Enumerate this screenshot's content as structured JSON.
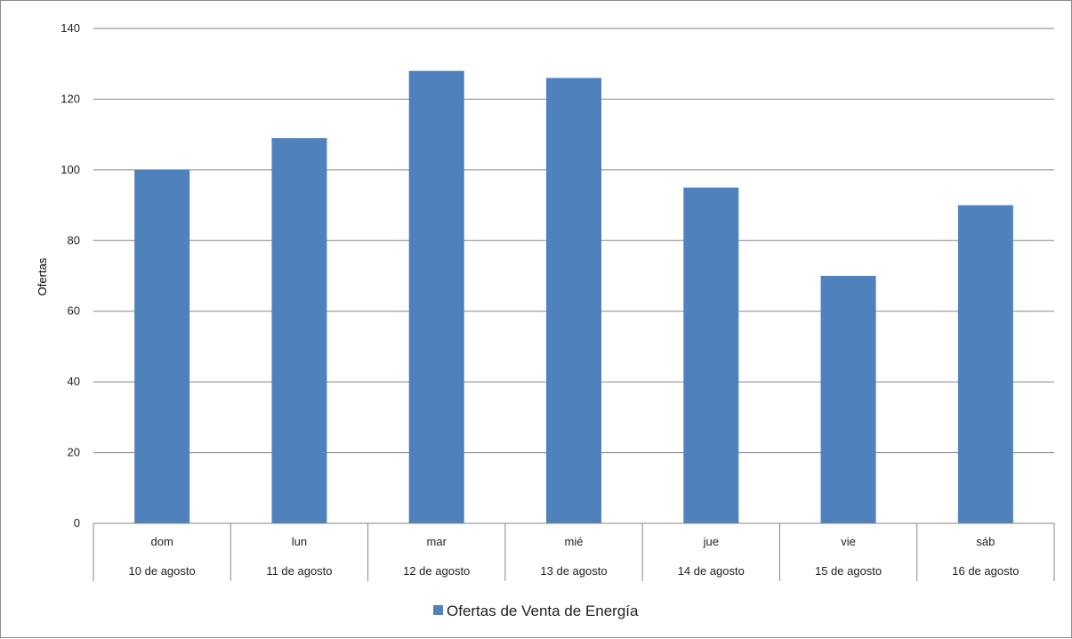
{
  "chart_data": {
    "type": "bar",
    "categories": [
      {
        "day": "dom",
        "date": "10 de agosto"
      },
      {
        "day": "lun",
        "date": "11 de agosto"
      },
      {
        "day": "mar",
        "date": "12 de agosto"
      },
      {
        "day": "mié",
        "date": "13 de agosto"
      },
      {
        "day": "jue",
        "date": "14 de agosto"
      },
      {
        "day": "vie",
        "date": "15 de agosto"
      },
      {
        "day": "sáb",
        "date": "16 de agosto"
      }
    ],
    "series": [
      {
        "name": "Ofertas de Venta de Energía",
        "color": "#4f81bd",
        "values": [
          100,
          109,
          128,
          126,
          95,
          70,
          90
        ]
      }
    ],
    "ylabel": "Ofertas",
    "ylim": [
      0,
      140
    ],
    "yticks": [
      0,
      20,
      40,
      60,
      80,
      100,
      120,
      140
    ],
    "grid": true,
    "legend_position": "bottom",
    "gridline_color": "#868686"
  }
}
